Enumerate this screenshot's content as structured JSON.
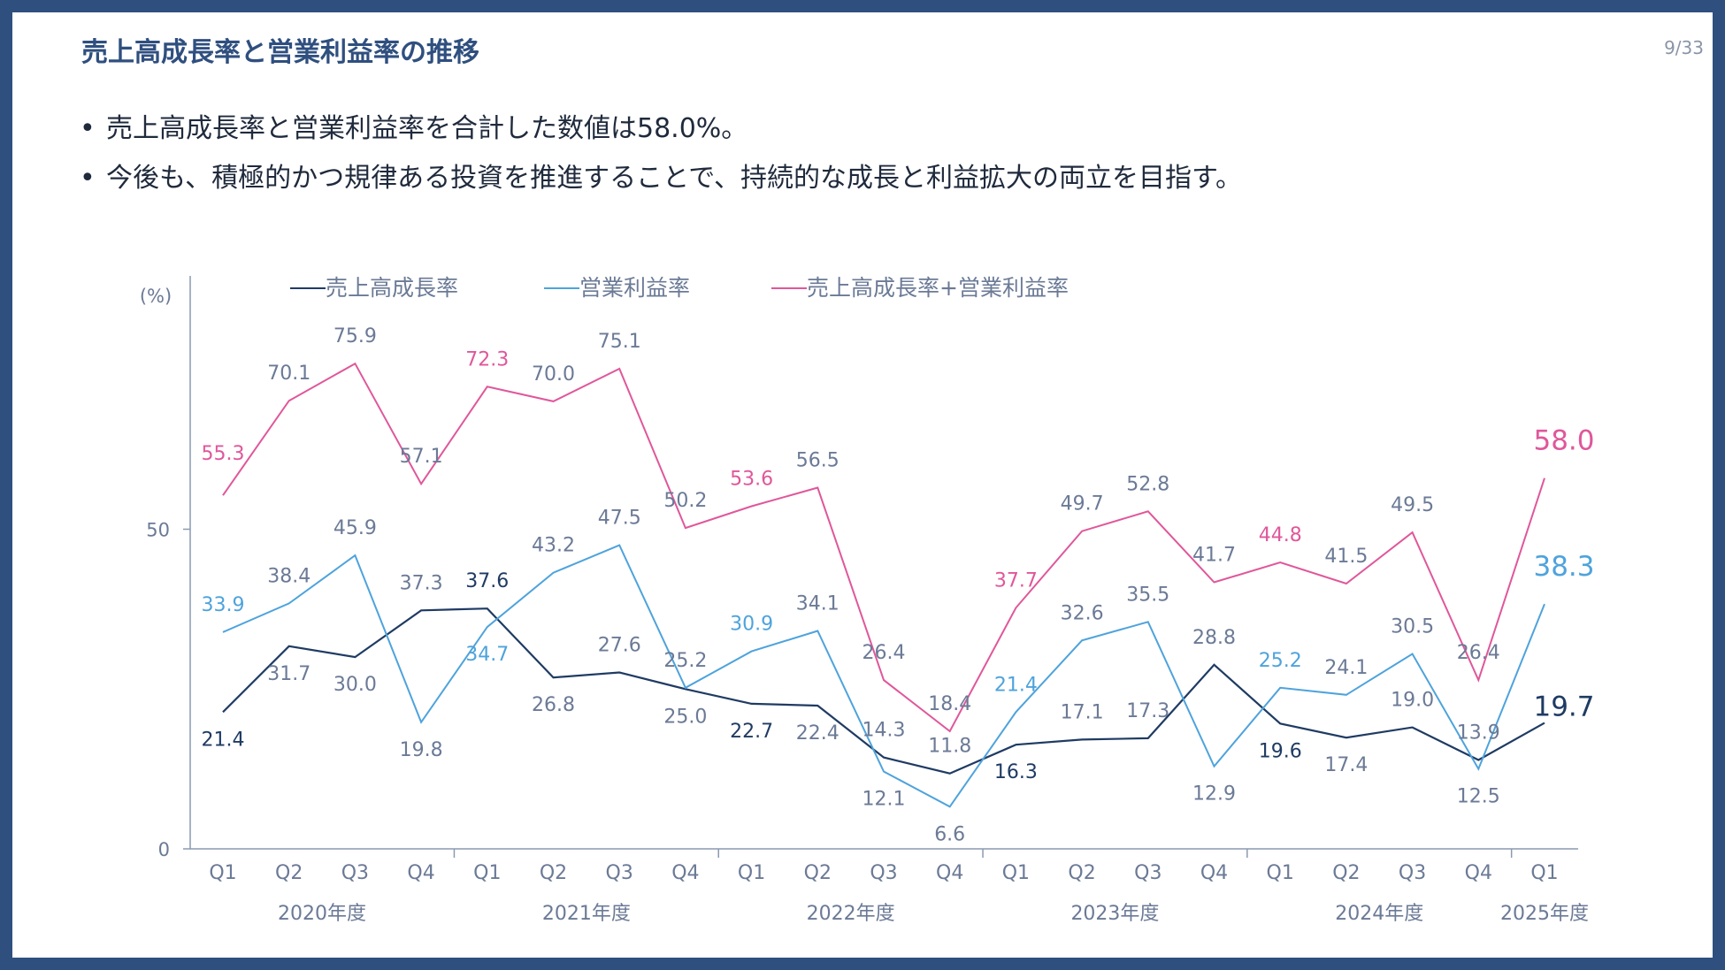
{
  "title": "売上高成長率と営業利益率の推移",
  "page_number": "9/33",
  "bullets": [
    "売上高成長率と営業利益率を合計した数値は58.0%。",
    "今後も、積極的かつ規律ある投資を推進することで、持続的な成長と利益拡大の両立を目指す。"
  ],
  "bullet_marker": "•",
  "chart_data": {
    "type": "line",
    "y_unit_label": "(%)",
    "ylim": [
      0,
      90
    ],
    "y_ticks": [
      0,
      50
    ],
    "categories": [
      "Q1",
      "Q2",
      "Q3",
      "Q4",
      "Q1",
      "Q2",
      "Q3",
      "Q4",
      "Q1",
      "Q2",
      "Q3",
      "Q4",
      "Q1",
      "Q2",
      "Q3",
      "Q4",
      "Q1",
      "Q2",
      "Q3",
      "Q4",
      "Q1"
    ],
    "fiscal_years": [
      {
        "label": "2020年度",
        "start": 0,
        "end": 3
      },
      {
        "label": "2021年度",
        "start": 4,
        "end": 7
      },
      {
        "label": "2022年度",
        "start": 8,
        "end": 11
      },
      {
        "label": "2023年度",
        "start": 12,
        "end": 15
      },
      {
        "label": "2024年度",
        "start": 16,
        "end": 19
      },
      {
        "label": "2025年度",
        "start": 20,
        "end": 20
      }
    ],
    "series": [
      {
        "name": "売上高成長率",
        "legend_label": "売上高成長率",
        "color": "#1f3b63",
        "values": [
          21.4,
          31.7,
          30.0,
          37.3,
          37.6,
          26.8,
          27.6,
          25.0,
          22.7,
          22.4,
          14.3,
          11.8,
          16.3,
          17.1,
          17.3,
          28.8,
          19.6,
          17.4,
          19.0,
          13.9,
          19.7
        ],
        "labels": [
          "21.4",
          "31.7",
          "30.0",
          "37.3",
          "37.6",
          "26.8",
          "27.6",
          "25.0",
          "22.7",
          "22.4",
          "14.3",
          "11.8",
          "16.3",
          "17.1",
          "17.3",
          "28.8",
          "19.6",
          "17.4",
          "19.0",
          "13.9",
          "19.7"
        ]
      },
      {
        "name": "営業利益率",
        "legend_label": "営業利益率",
        "color": "#4ea3dc",
        "values": [
          33.9,
          38.4,
          45.9,
          19.8,
          34.7,
          43.2,
          47.5,
          25.2,
          30.9,
          34.1,
          12.1,
          6.6,
          21.4,
          32.6,
          35.5,
          12.9,
          25.2,
          24.1,
          30.5,
          12.5,
          38.3
        ],
        "labels": [
          "33.9",
          "38.4",
          "45.9",
          "19.8",
          "34.7",
          "43.2",
          "47.5",
          "25.2",
          "30.9",
          "34.1",
          "12.1",
          "6.6",
          "21.4",
          "32.6",
          "35.5",
          "12.9",
          "25.2",
          "24.1",
          "30.5",
          "12.5",
          "38.3"
        ]
      },
      {
        "name": "売上高成長率+営業利益率",
        "legend_label": "売上高成長率+営業利益率",
        "color": "#e0579a",
        "values": [
          55.3,
          70.1,
          75.9,
          57.1,
          72.3,
          70.0,
          75.1,
          50.2,
          53.6,
          56.5,
          26.4,
          18.4,
          37.7,
          49.7,
          52.8,
          41.7,
          44.8,
          41.5,
          49.5,
          26.4,
          58.0
        ],
        "labels": [
          "55.3",
          "70.1",
          "75.9",
          "57.1",
          "72.3",
          "70.0",
          "75.1",
          "50.2",
          "53.6",
          "56.5",
          "26.4",
          "18.4",
          "37.7",
          "49.7",
          "52.8",
          "41.7",
          "44.8",
          "41.5",
          "49.5",
          "26.4",
          "58.0"
        ]
      }
    ],
    "colors": {
      "axis": "#8a9ab0",
      "tick_text": "#6b7a96",
      "gray_label": "#6b7a96",
      "dark_label": "#1f3b63"
    }
  }
}
